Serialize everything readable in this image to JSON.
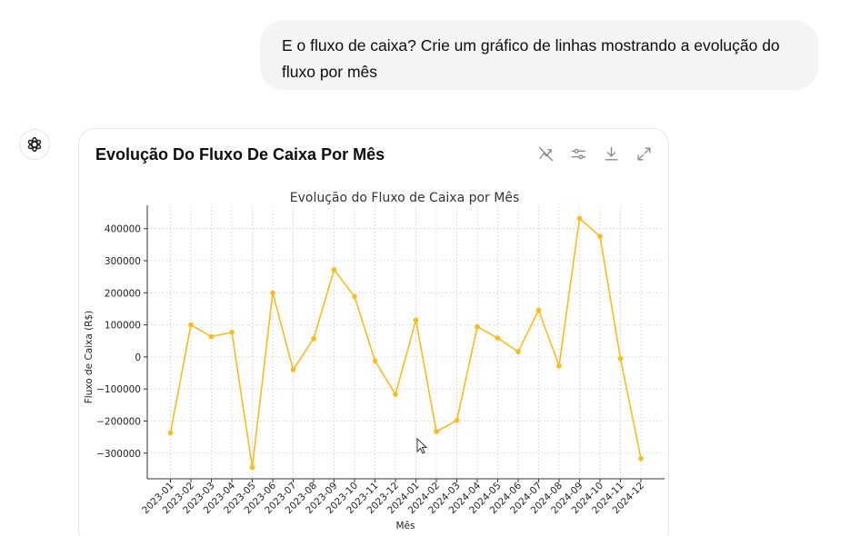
{
  "user_message": {
    "text": "E o fluxo de caixa? Crie um gráfico de linhas mostrando a evolução do fluxo por mês"
  },
  "assistant": {
    "avatar_icon": "openai-logo-icon"
  },
  "chart_card": {
    "title": "Evolução Do Fluxo De Caixa Por Mês",
    "toolbar_icons": [
      "switch-to-interactive-icon",
      "settings-sliders-icon",
      "download-icon",
      "expand-icon"
    ]
  },
  "chart_data": {
    "type": "line",
    "title": "Evolução do Fluxo de Caixa por Mês",
    "xlabel": "Mês",
    "ylabel": "Fluxo de Caixa (R$)",
    "categories": [
      "2023-01",
      "2023-02",
      "2023-03",
      "2023-04",
      "2023-05",
      "2023-06",
      "2023-07",
      "2023-08",
      "2023-09",
      "2023-10",
      "2023-11",
      "2023-12",
      "2024-01",
      "2024-02",
      "2024-03",
      "2024-04",
      "2024-05",
      "2024-06",
      "2024-07",
      "2024-08",
      "2024-09",
      "2024-10",
      "2024-11",
      "2024-12"
    ],
    "values": [
      -237000,
      100000,
      63000,
      77000,
      -345000,
      200000,
      -40000,
      57000,
      272000,
      188000,
      -12000,
      -117000,
      115000,
      -233000,
      -198000,
      94000,
      59000,
      16000,
      146000,
      -28000,
      432000,
      376000,
      -5000,
      -317000
    ],
    "yticks": [
      -300000,
      -200000,
      -100000,
      0,
      100000,
      200000,
      300000,
      400000
    ],
    "ytick_labels": [
      "−300000",
      "−200000",
      "−100000",
      "0",
      "100000",
      "200000",
      "300000",
      "400000"
    ],
    "ylim": [
      -380000,
      470000
    ],
    "grid": true,
    "color": "#fbbc1a"
  }
}
